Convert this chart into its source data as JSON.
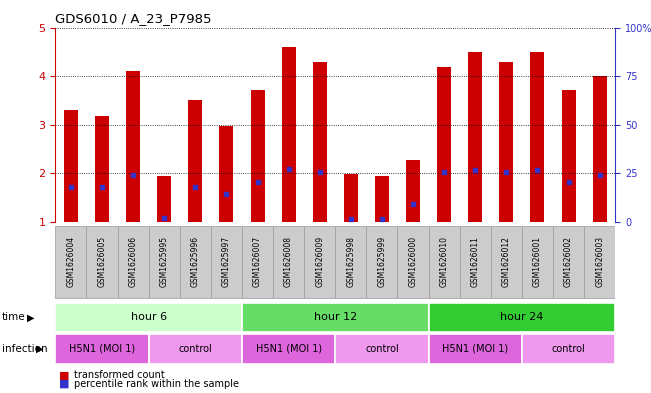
{
  "title": "GDS6010 / A_23_P7985",
  "samples": [
    "GSM1626004",
    "GSM1626005",
    "GSM1626006",
    "GSM1625995",
    "GSM1625996",
    "GSM1625997",
    "GSM1626007",
    "GSM1626008",
    "GSM1626009",
    "GSM1625998",
    "GSM1625999",
    "GSM1626000",
    "GSM1626010",
    "GSM1626011",
    "GSM1626012",
    "GSM1626001",
    "GSM1626002",
    "GSM1626003"
  ],
  "bar_values": [
    3.3,
    3.18,
    4.1,
    1.95,
    3.5,
    2.97,
    3.72,
    4.6,
    4.3,
    1.98,
    1.95,
    2.28,
    4.18,
    4.5,
    4.3,
    4.5,
    3.72,
    4.0
  ],
  "blue_marker_values": [
    1.73,
    1.72,
    1.97,
    1.08,
    1.72,
    1.58,
    1.82,
    2.1,
    2.02,
    1.07,
    1.07,
    1.37,
    2.02,
    2.08,
    2.02,
    2.08,
    1.82,
    1.97
  ],
  "bar_color": "#cc0000",
  "blue_color": "#3333cc",
  "ylim": [
    1,
    5
  ],
  "yticks": [
    1,
    2,
    3,
    4,
    5
  ],
  "right_yticks": [
    0,
    25,
    50,
    75,
    100
  ],
  "right_ytick_labels": [
    "0",
    "25",
    "50",
    "75",
    "100%"
  ],
  "time_groups": [
    {
      "label": "hour 6",
      "start": 0,
      "end": 6,
      "color": "#ccffcc"
    },
    {
      "label": "hour 12",
      "start": 6,
      "end": 12,
      "color": "#66dd66"
    },
    {
      "label": "hour 24",
      "start": 12,
      "end": 18,
      "color": "#33cc33"
    }
  ],
  "infection_groups": [
    {
      "label": "H5N1 (MOI 1)",
      "start": 0,
      "end": 3,
      "color": "#dd66dd"
    },
    {
      "label": "control",
      "start": 3,
      "end": 6,
      "color": "#ee99ee"
    },
    {
      "label": "H5N1 (MOI 1)",
      "start": 6,
      "end": 9,
      "color": "#dd66dd"
    },
    {
      "label": "control",
      "start": 9,
      "end": 12,
      "color": "#ee99ee"
    },
    {
      "label": "H5N1 (MOI 1)",
      "start": 12,
      "end": 15,
      "color": "#dd66dd"
    },
    {
      "label": "control",
      "start": 15,
      "end": 18,
      "color": "#ee99ee"
    }
  ],
  "bar_width": 0.45,
  "axis_color": "#cc0000",
  "right_axis_color": "#3333cc",
  "sample_bg_color": "#cccccc",
  "sample_border_color": "#999999"
}
